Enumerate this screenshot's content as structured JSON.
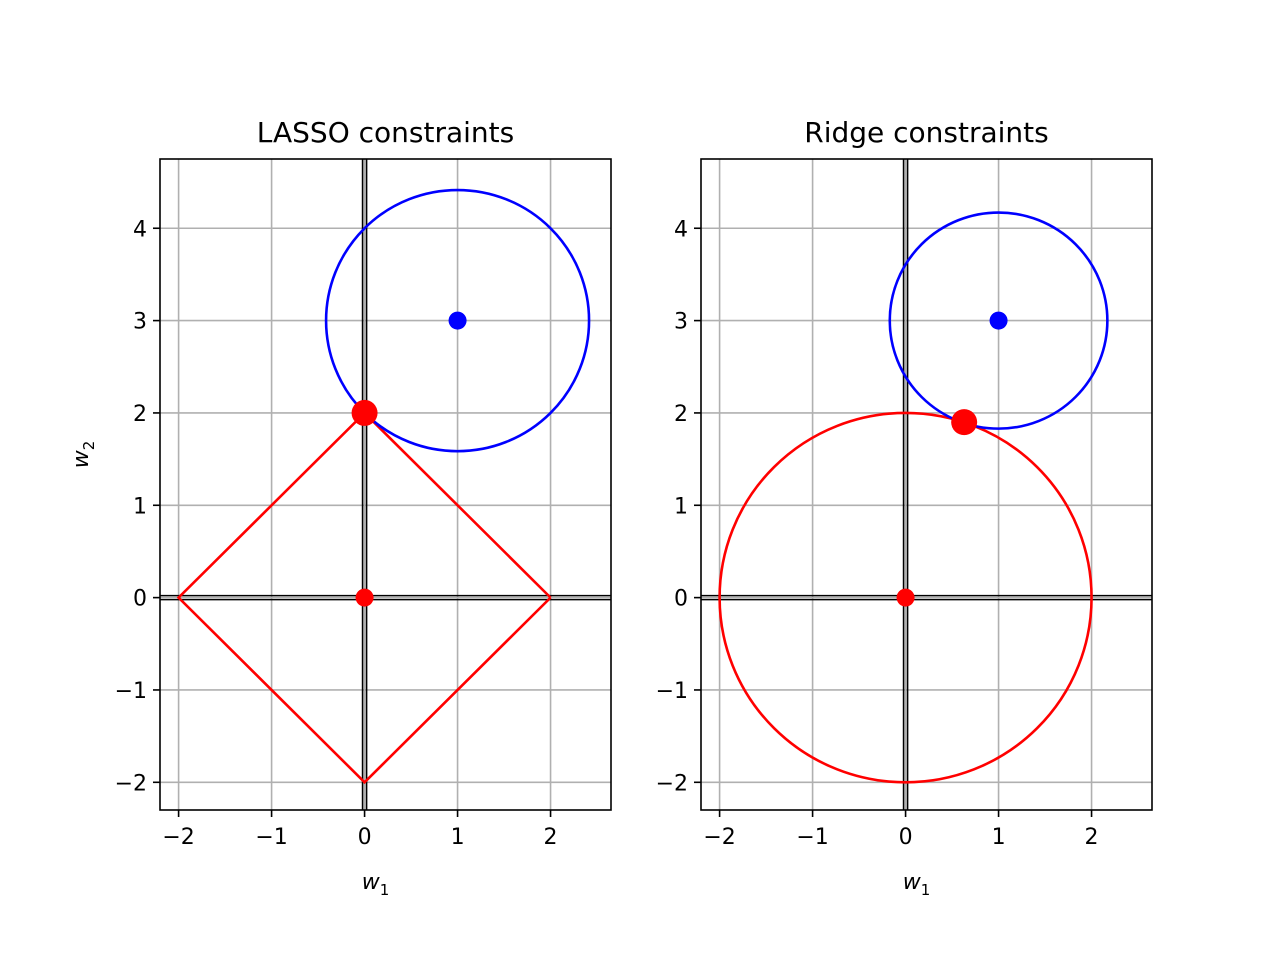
{
  "chart_data": [
    {
      "type": "line",
      "title": "LASSO constraints",
      "xlabel": "w1",
      "ylabel": "w2",
      "xlim": [
        -2.2,
        2.65
      ],
      "ylim": [
        -2.3,
        4.75
      ],
      "xticks": [
        -2,
        -1,
        0,
        1,
        2
      ],
      "yticks": [
        -2,
        -1,
        0,
        1,
        2,
        3,
        4
      ],
      "grid": true,
      "constraint_region": {
        "shape": "L1 diamond",
        "radius": 2,
        "color": "#ff0000"
      },
      "loss_contour": {
        "shape": "circle",
        "center": [
          1,
          3
        ],
        "radius": 1.414,
        "color": "#0000ff"
      },
      "points": [
        {
          "label": "loss center",
          "x": 1,
          "y": 3,
          "color": "#0000ff"
        },
        {
          "label": "origin",
          "x": 0,
          "y": 0,
          "color": "#ff0000"
        },
        {
          "label": "solution",
          "x": 0,
          "y": 2,
          "color": "#ff0000"
        }
      ]
    },
    {
      "type": "line",
      "title": "Ridge constraints",
      "xlabel": "w1",
      "ylabel": "",
      "xlim": [
        -2.2,
        2.65
      ],
      "ylim": [
        -2.3,
        4.75
      ],
      "xticks": [
        -2,
        -1,
        0,
        1,
        2
      ],
      "yticks": [
        -2,
        -1,
        0,
        1,
        2,
        3,
        4
      ],
      "grid": true,
      "constraint_region": {
        "shape": "L2 circle",
        "radius": 2,
        "color": "#ff0000"
      },
      "loss_contour": {
        "shape": "circle",
        "center": [
          1,
          3
        ],
        "radius": 1.17,
        "color": "#0000ff"
      },
      "points": [
        {
          "label": "loss center",
          "x": 1,
          "y": 3,
          "color": "#0000ff"
        },
        {
          "label": "origin",
          "x": 0,
          "y": 0,
          "color": "#ff0000"
        },
        {
          "label": "solution",
          "x": 0.63,
          "y": 1.9,
          "color": "#ff0000"
        }
      ]
    }
  ]
}
